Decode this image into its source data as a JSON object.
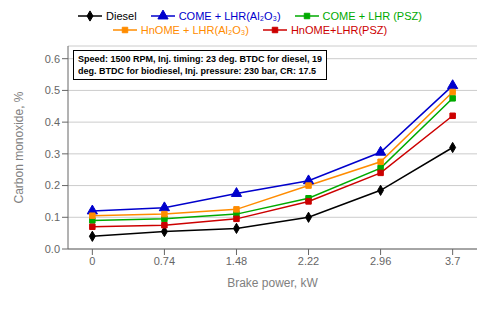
{
  "chart_data": {
    "type": "line",
    "x": [
      0,
      0.74,
      1.48,
      2.22,
      2.96,
      3.7
    ],
    "series": [
      {
        "name": "Diesel",
        "color": "#000000",
        "marker": "diamond",
        "values": [
          0.04,
          0.055,
          0.065,
          0.1,
          0.185,
          0.32
        ]
      },
      {
        "name": "COME + LHR(Al₂O₃)",
        "color": "#0000CC",
        "marker": "triangle",
        "values": [
          0.12,
          0.13,
          0.175,
          0.215,
          0.305,
          0.515
        ]
      },
      {
        "name": "COME + LHR (PSZ)",
        "color": "#00AA00",
        "marker": "square",
        "values": [
          0.09,
          0.095,
          0.11,
          0.16,
          0.255,
          0.475
        ]
      },
      {
        "name": "HnOME + LHR(Al₂O₃)",
        "color": "#FF8C00",
        "marker": "square",
        "values": [
          0.105,
          0.11,
          0.125,
          0.2,
          0.275,
          0.495
        ]
      },
      {
        "name": "HnOME+LHR(PSZ)",
        "color": "#CC0000",
        "marker": "square",
        "values": [
          0.07,
          0.075,
          0.095,
          0.15,
          0.24,
          0.42
        ]
      }
    ],
    "xlabel": "Brake power, kW",
    "ylabel": "Carbon monoxide, %",
    "xlim": [
      -0.25,
      3.95
    ],
    "ylim": [
      0,
      0.64
    ],
    "xticks": [
      0,
      0.74,
      1.48,
      2.22,
      2.96,
      3.7
    ],
    "yticks": [
      {
        "value": 0,
        "label": "0.0"
      },
      0.1,
      0.2,
      0.3,
      0.4,
      0.5,
      0.6
    ],
    "annotation": "Speed: 1500 RPM, Inj. timing: 23 deg. BTDC for diesel, 19\ndeg. BTDC for biodiesel, Inj. pressure: 230 bar, CR: 17.5",
    "grid": true,
    "legend": "top"
  }
}
